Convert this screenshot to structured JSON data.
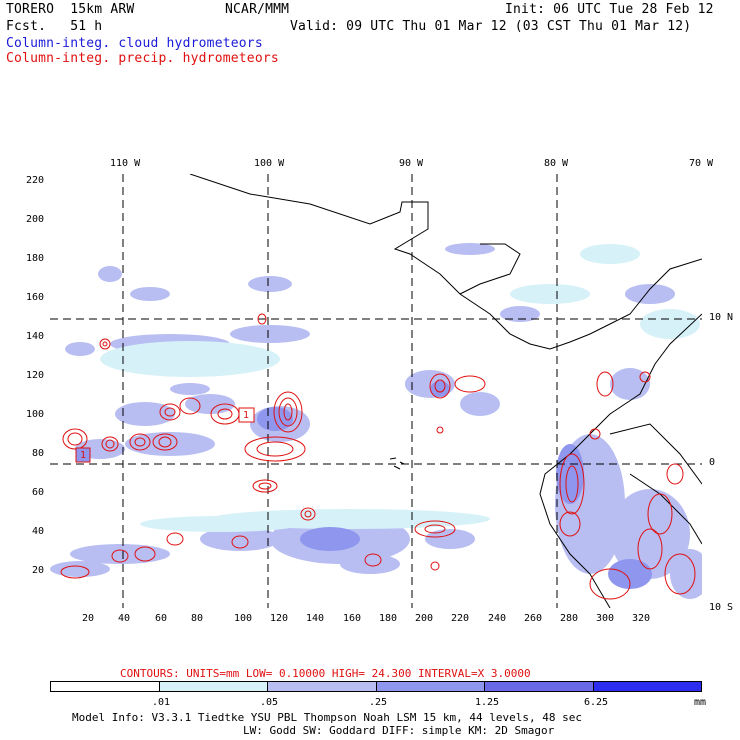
{
  "header": {
    "model": "TORERO  15km ARW",
    "org": "NCAR/MMM",
    "init": "Init: 06 UTC Tue 28 Feb 12",
    "fcst": "Fcst.   51 h",
    "valid": "Valid: 09 UTC Thu 01 Mar 12 (03 CST Thu 01 Mar 12)",
    "field1": "Column-integ. cloud hydrometeors",
    "field2": "Column-integ. precip. hydrometeors"
  },
  "map": {
    "top_lon_labels": [
      "110 W",
      "100 W",
      "90 W",
      "80 W",
      "70 W"
    ],
    "right_lat_labels": [
      "10 N",
      "0",
      "10 S"
    ],
    "y_ticks": [
      "220",
      "200",
      "180",
      "160",
      "140",
      "120",
      "100",
      "80",
      "60",
      "40",
      "20"
    ],
    "x_ticks": [
      "20",
      "40",
      "60",
      "80",
      "100",
      "120",
      "140",
      "160",
      "180",
      "200",
      "220",
      "240",
      "260",
      "280",
      "300",
      "320"
    ],
    "contour_labels": [
      "1",
      "1"
    ]
  },
  "legend": {
    "contours_line": "CONTOURS:  UNITS=mm  LOW= 0.10000      HIGH=  24.300      INTERVAL=X  3.0000",
    "values": [
      ".01",
      ".05",
      ".25",
      "1.25",
      "6.25"
    ],
    "unit": "mm",
    "colors": [
      "#ffffff",
      "#d6f2f8",
      "#b8bdf2",
      "#8e96ee",
      "#6a6ae8",
      "#2d2df0"
    ]
  },
  "footer": {
    "line1": "Model Info: V3.3.1   Tiedtke YSU PBL  Thompson    Noah LSM  15 km,   44 levels,   48 sec",
    "line2": "LW: Godd SW: Goddard DIFF: simple KM: 2D Smagor"
  }
}
